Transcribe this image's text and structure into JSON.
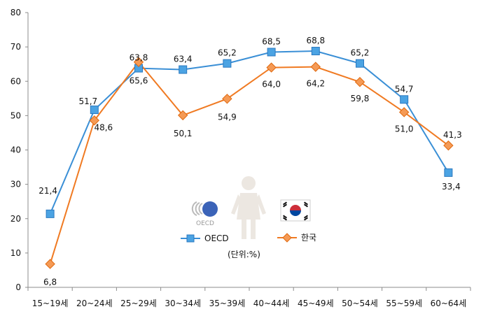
{
  "chart_data": {
    "type": "line",
    "categories": [
      "15~19세",
      "20~24세",
      "25~29세",
      "30~34세",
      "35~39세",
      "40~44세",
      "45~49세",
      "50~54세",
      "55~59세",
      "60~64세"
    ],
    "series": [
      {
        "name": "OECD",
        "values": [
          21.4,
          51.7,
          63.8,
          63.4,
          65.2,
          68.5,
          68.8,
          65.2,
          54.7,
          33.4
        ],
        "labels": [
          "21,4",
          "51,7",
          "63,8",
          "63,4",
          "65,2",
          "68,5",
          "68,8",
          "65,2",
          "54,7",
          "33,4"
        ],
        "color": "#3a8fd6",
        "marker": "square"
      },
      {
        "name": "한국",
        "values": [
          6.8,
          48.6,
          65.6,
          50.1,
          54.9,
          64.0,
          64.2,
          59.8,
          51.0,
          41.3
        ],
        "labels": [
          "6,8",
          "48,6",
          "65,6",
          "50,1",
          "54,9",
          "64,0",
          "64,2",
          "59,8",
          "51,0",
          "41,3"
        ],
        "color": "#f07a22",
        "marker": "diamond"
      }
    ],
    "yticks": [
      "0",
      "10",
      "20",
      "30",
      "40",
      "50",
      "60",
      "70",
      "80"
    ],
    "ylim": [
      0,
      80
    ],
    "unit": "(단위:%)",
    "logo_text": "OECD",
    "legend_placement": "center",
    "grid": false
  }
}
